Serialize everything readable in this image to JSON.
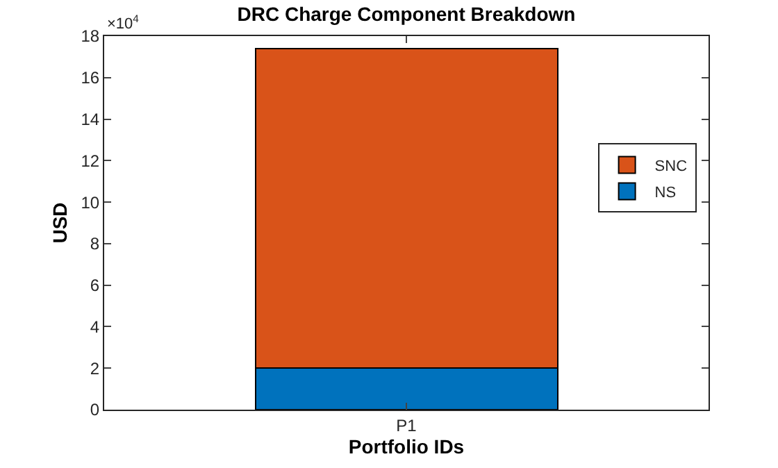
{
  "chart_data": {
    "type": "bar",
    "title": "DRC Charge Component Breakdown",
    "xlabel": "Portfolio IDs",
    "ylabel": "USD",
    "categories": [
      "P1"
    ],
    "stacked": true,
    "series": [
      {
        "name": "NS",
        "color": "#0072bd",
        "values": [
          2.0
        ]
      },
      {
        "name": "SNC",
        "color": "#d95319",
        "values": [
          15.4
        ]
      }
    ],
    "ylim": [
      0,
      18
    ],
    "yticks": [
      0,
      2,
      4,
      6,
      8,
      10,
      12,
      14,
      16,
      18
    ],
    "annotations": [
      "×10$^{4}$"
    ],
    "legend": "right"
  }
}
